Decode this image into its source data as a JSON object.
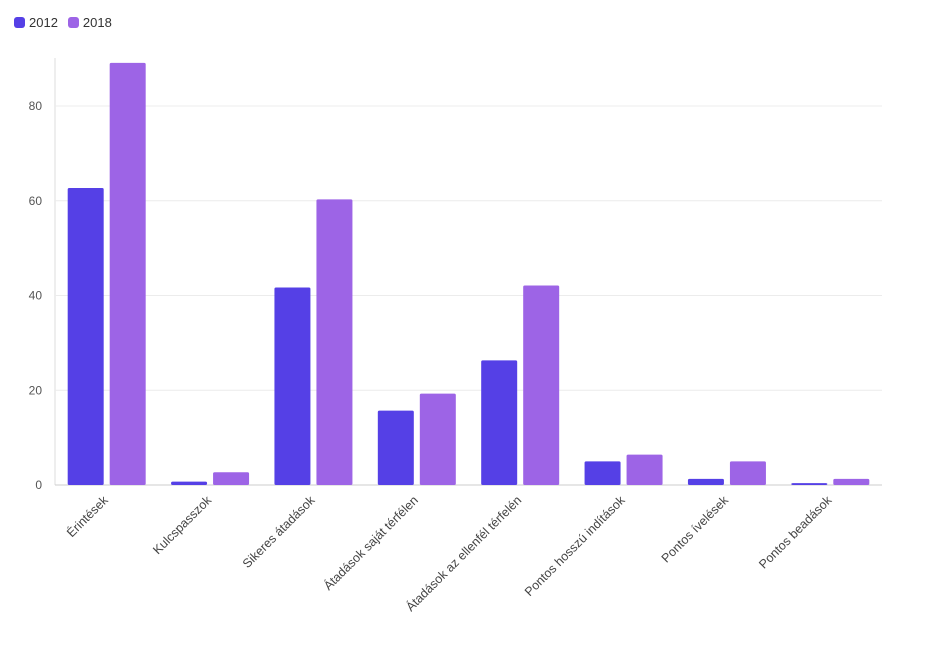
{
  "chart_data": {
    "type": "bar",
    "categories": [
      "Érintések",
      "Kulcspasszok",
      "Sikeres átadások",
      "Átadások saját térfélen",
      "Átadások az ellenfél térfelén",
      "Pontos hosszú indítások",
      "Pontos ívelések",
      "Pontos beadások"
    ],
    "series": [
      {
        "name": "2012",
        "color": "#5540E6",
        "values": [
          62.7,
          0.7,
          41.7,
          15.7,
          26.3,
          5.0,
          1.3,
          0.4
        ]
      },
      {
        "name": "2018",
        "color": "#9D64E6",
        "values": [
          89.1,
          2.7,
          60.3,
          19.3,
          42.1,
          6.4,
          5.0,
          1.3
        ]
      }
    ],
    "yticks": [
      0,
      20,
      40,
      60,
      80
    ],
    "ylim": [
      0,
      90
    ],
    "grid": true,
    "legend": "top-left",
    "title": "",
    "xlabel": "",
    "ylabel": ""
  }
}
